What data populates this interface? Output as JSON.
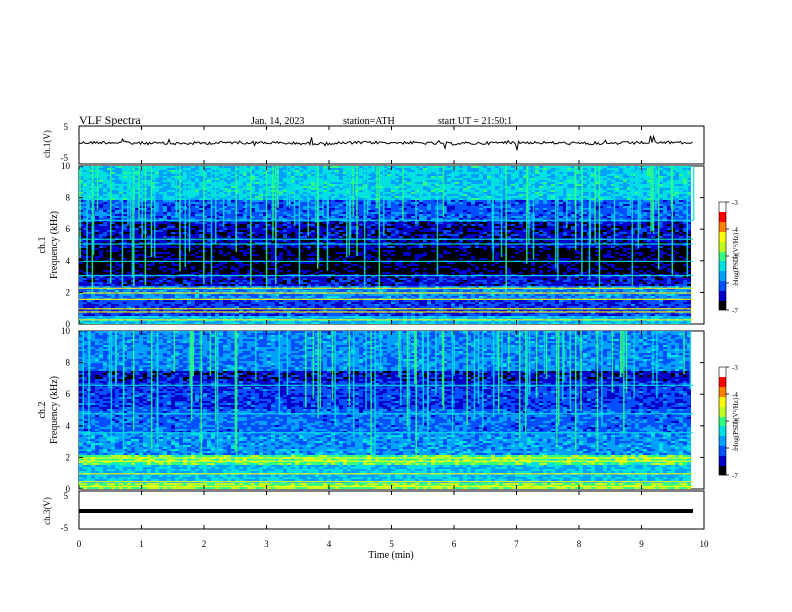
{
  "header": {
    "title": "VLF Spectra",
    "date": "Jan. 14, 2023",
    "station": "station=ATH",
    "start": "start UT = 21:50:1"
  },
  "colors": {
    "spectrum": [
      "#000000",
      "#0000c8",
      "#0050ff",
      "#00a0ff",
      "#00e0e0",
      "#30ff80",
      "#c0ff20",
      "#ffff00",
      "#ff8000",
      "#ff0000",
      "#ffffff"
    ]
  },
  "chart_data": [
    {
      "type": "line",
      "id": "ch1-voltage",
      "ylabel": "ch.1(V)",
      "ylim": [
        -5,
        5
      ],
      "yticks": [
        "5",
        "-5"
      ],
      "xlim": [
        0,
        10
      ],
      "note": "time series around 0 V with spiky noise"
    },
    {
      "type": "heatmap",
      "id": "ch1-spectrogram",
      "ylabel": "ch.1 Frequency (kHz)",
      "ylabel_line1": "ch.1",
      "ylabel_line2": "Frequency (kHz)",
      "ylim": [
        0,
        10
      ],
      "yticks": [
        "0",
        "2",
        "4",
        "6",
        "8",
        "10"
      ],
      "xlim": [
        0,
        9.8
      ],
      "colorbar": {
        "label": "log(PSD)(V²/Hz)",
        "range": [
          -7,
          -3
        ],
        "ticks": [
          "-3",
          "-4",
          "-5",
          "-6",
          "-7"
        ]
      }
    },
    {
      "type": "heatmap",
      "id": "ch2-spectrogram",
      "ylabel": "ch.2 Frequency (kHz)",
      "ylabel_line1": "ch.2",
      "ylabel_line2": "Frequency (kHz)",
      "ylim": [
        0,
        10
      ],
      "yticks": [
        "0",
        "2",
        "4",
        "6",
        "8",
        "10"
      ],
      "xlim": [
        0,
        9.8
      ],
      "colorbar": {
        "label": "log(PSD)(V²/Hz)",
        "range": [
          -7,
          -3
        ],
        "ticks": [
          "-3",
          "-4",
          "-5",
          "-6",
          "-7"
        ]
      }
    },
    {
      "type": "line",
      "id": "ch3-voltage",
      "ylabel": "ch.3(V)",
      "ylim": [
        -5,
        5
      ],
      "yticks": [
        "5",
        "-5"
      ],
      "xlim": [
        0,
        10
      ],
      "note": "flat line at approx -2 V"
    }
  ],
  "xaxis": {
    "label": "Time (min)",
    "ticks": [
      "0",
      "1",
      "2",
      "3",
      "4",
      "5",
      "6",
      "7",
      "8",
      "9",
      "10"
    ]
  }
}
